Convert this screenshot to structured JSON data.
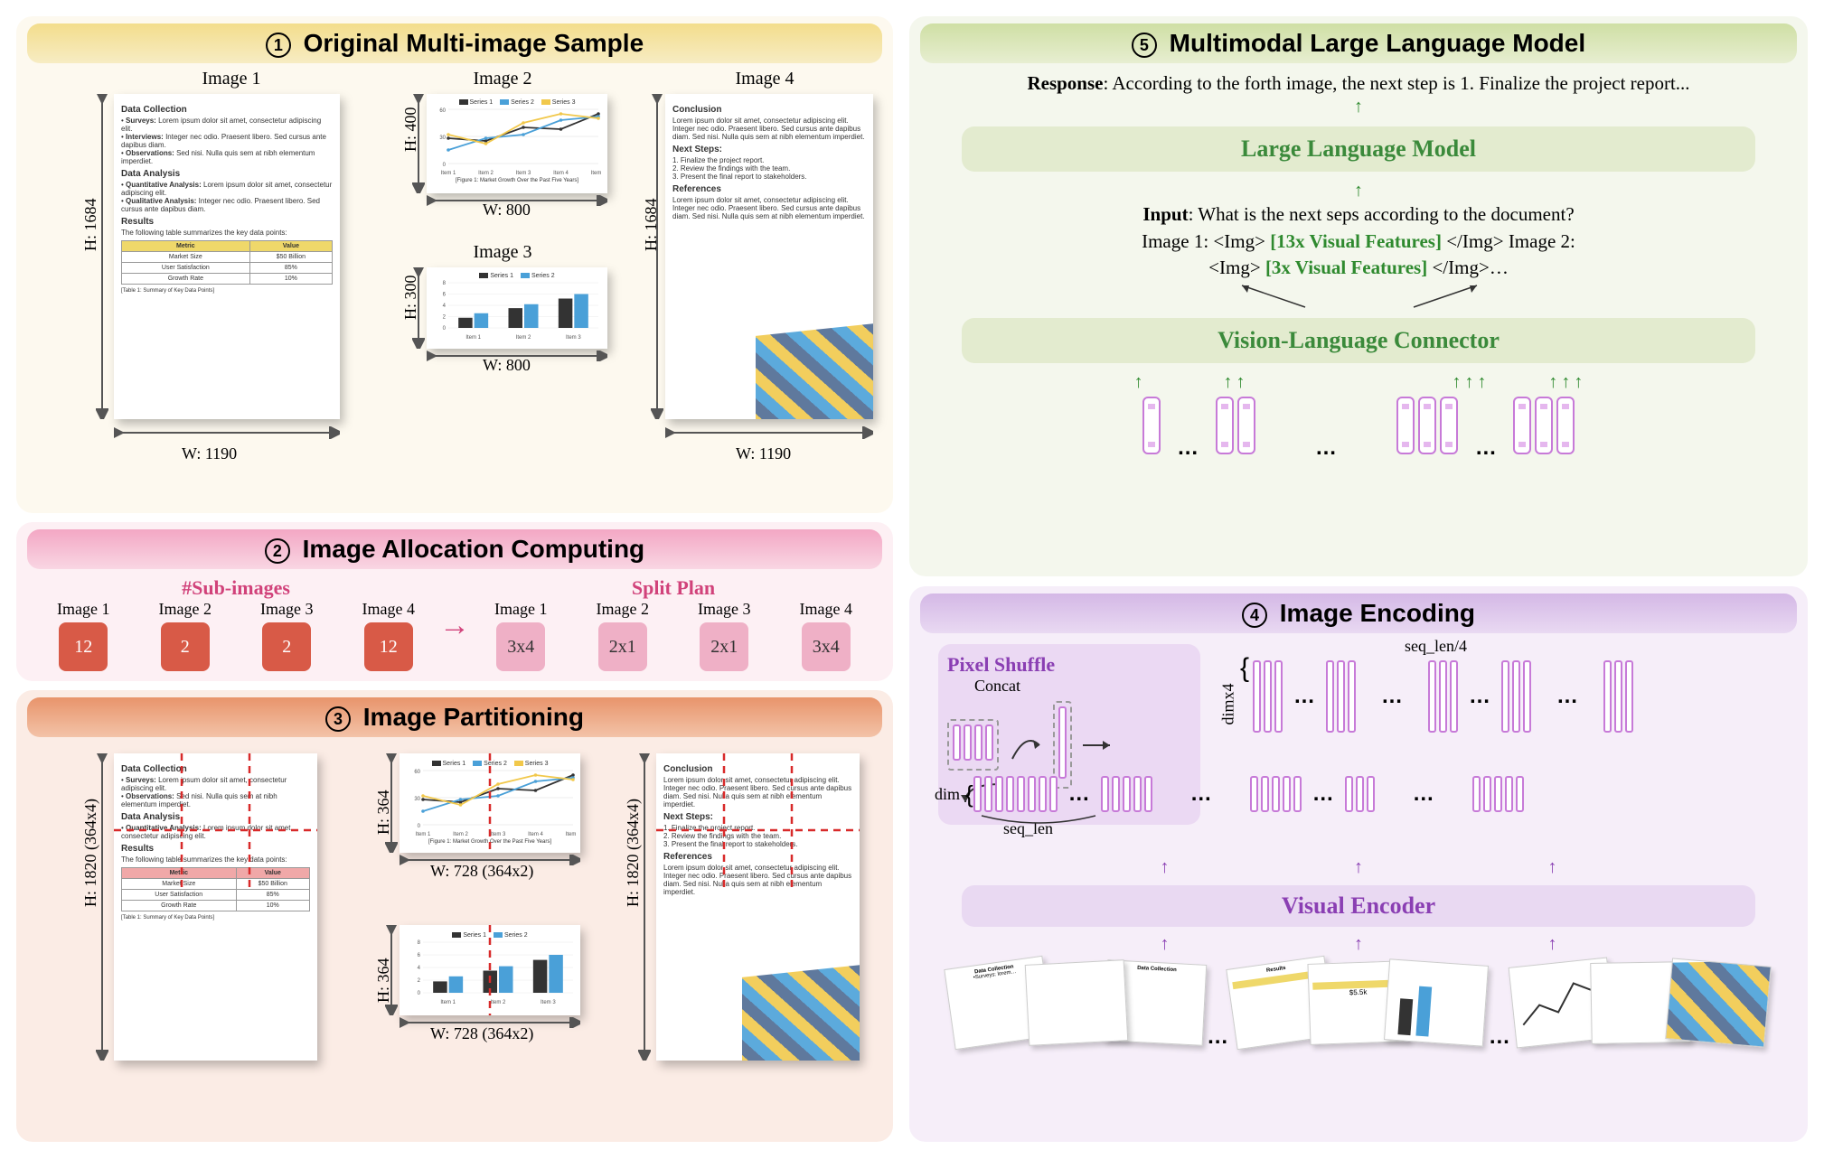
{
  "panel1": {
    "step": "1",
    "title": "Original Multi-image Sample",
    "images": {
      "img1": {
        "label": "Image 1",
        "W": "W: 1190",
        "H": "H: 1684"
      },
      "img2": {
        "label": "Image 2",
        "W": "W: 800",
        "H": "H: 400"
      },
      "img3": {
        "label": "Image 3",
        "W": "W: 800",
        "H": "H: 300"
      },
      "img4": {
        "label": "Image 4",
        "W": "W: 1190",
        "H": "H: 1684"
      }
    },
    "doc1": {
      "h1": "Data Collection",
      "b1": "Surveys:",
      "t1": "Lorem ipsum dolor sit amet, consectetur adipiscing elit.",
      "b2": "Interviews:",
      "t2": "Integer nec odio. Praesent libero. Sed cursus ante dapibus diam.",
      "b3": "Observations:",
      "t3": "Sed nisi. Nulla quis sem at nibh elementum imperdiet.",
      "h2": "Data Analysis",
      "b4": "Quantitative Analysis:",
      "t4": "Lorem ipsum dolor sit amet, consectetur adipiscing elit.",
      "b5": "Qualitative Analysis:",
      "t5": "Integer nec odio. Praesent libero. Sed cursus ante dapibus diam.",
      "h3": "Results",
      "tintro": "The following table summarizes the key data points:",
      "th1": "Metric",
      "th2": "Value",
      "r1a": "Market Size",
      "r1b": "$50 Billion",
      "r2a": "User Satisfaction",
      "r2b": "85%",
      "r3a": "Growth Rate",
      "r3b": "10%",
      "tcap": "[Table 1: Summary of Key Data Points]"
    },
    "doc4": {
      "h1": "Conclusion",
      "t1": "Lorem ipsum dolor sit amet, consectetur adipiscing elit. Integer nec odio. Praesent libero. Sed cursus ante dapibus diam. Sed nisi. Nulla quis sem at nibh elementum imperdiet.",
      "h2": "Next Steps:",
      "s1": "1. Finalize the project report.",
      "s2": "2. Review the findings with the team.",
      "s3": "3. Present the final report to stakeholders.",
      "h3": "References",
      "t2": "Lorem ipsum dolor sit amet, consectetur adipiscing elit. Integer nec odio. Praesent libero. Sed cursus ante dapibus diam. Sed nisi. Nulla quis sem at nibh elementum imperdiet."
    },
    "chart2": {
      "legend": [
        "Series 1",
        "Series 2",
        "Series 3"
      ],
      "legend_colors": [
        "#333333",
        "#4aa0d8",
        "#f1c84b"
      ],
      "xlabels": [
        "Item 1",
        "Item 2",
        "Item 3",
        "Item 4",
        "Item 5"
      ],
      "ylim": [
        0,
        60
      ],
      "yticks": [
        0,
        30,
        60
      ],
      "series1": [
        28,
        25,
        40,
        38,
        55
      ],
      "series2": [
        15,
        28,
        32,
        48,
        52
      ],
      "series3": [
        32,
        22,
        45,
        55,
        50
      ],
      "caption": "[Figure 1: Market Growth Over the Past Five Years]"
    },
    "chart3": {
      "legend": [
        "Series 1",
        "Series 2"
      ],
      "legend_colors": [
        "#333333",
        "#4aa0d8"
      ],
      "xlabels": [
        "Item 1",
        "Item 2",
        "Item 3"
      ],
      "s1": [
        1.8,
        3.5,
        5.2
      ],
      "s2": [
        2.6,
        4.2,
        6.0
      ],
      "ylim": [
        0,
        8
      ],
      "yticks": [
        0,
        2,
        4,
        6,
        8
      ]
    }
  },
  "panel2": {
    "step": "2",
    "title": "Image Allocation Computing",
    "sub1": "#Sub-images",
    "sub2": "Split Plan",
    "cols": [
      {
        "label": "Image 1",
        "val": "12",
        "plan": "3x4"
      },
      {
        "label": "Image 2",
        "val": "2",
        "plan": "2x1"
      },
      {
        "label": "Image 3",
        "val": "2",
        "plan": "2x1"
      },
      {
        "label": "Image 4",
        "val": "12",
        "plan": "3x4"
      }
    ]
  },
  "panel3": {
    "step": "3",
    "title": "Image Partitioning",
    "dims": {
      "H1": "H: 1820 (364x4)",
      "H2": "H: 364",
      "H4": "H: 1820 (364x4)",
      "W2": "W: 728 (364x2)",
      "W3": "W: 728 (364x2)"
    }
  },
  "panel4": {
    "step": "4",
    "title": "Image Encoding",
    "pixel_shuffle": "Pixel Shuffle",
    "concat": "Concat",
    "dim": "dim",
    "seq_len": "seq_len",
    "dimx4": "dimx4",
    "seq_len4": "seq_len/4",
    "visual_encoder": "Visual Encoder",
    "colors": {
      "token_border": "#c77ad8",
      "accent": "#8a3fb3"
    }
  },
  "panel5": {
    "step": "5",
    "title": "Multimodal Large Language Model",
    "response_label": "Response",
    "response_text": ": According to the forth image, the next step is 1. Finalize the project report...",
    "llm": "Large Language Model",
    "input_label": "Input",
    "input_q": ": What is the next seps according to the document?",
    "line2a": "Image 1: <Img>",
    "vf1": " [13x Visual Features] ",
    "line2b": "</Img> Image 2:",
    "line3a": "<Img>",
    "vf2": " [3x Visual Features] ",
    "line3b": "</Img>…",
    "connector": "Vision-Language Connector",
    "colors": {
      "accent": "#2f8a2f"
    }
  }
}
